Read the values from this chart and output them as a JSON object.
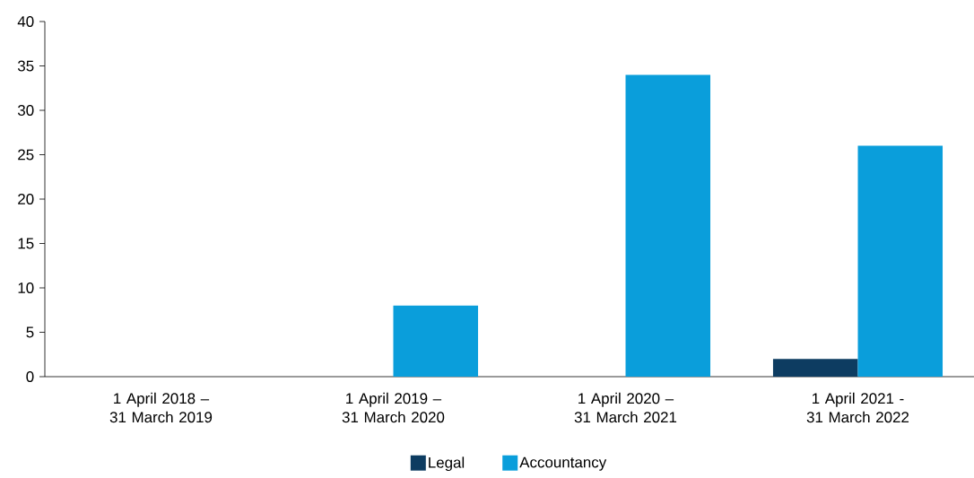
{
  "chart_data": {
    "type": "bar",
    "categories": [
      "1 April 2018 – 31 March 2019",
      "1 April 2019 – 31 March 2020",
      "1 April 2020 – 31 March 2021",
      "1 April 2021 - 31 March 2022"
    ],
    "series": [
      {
        "name": "Legal",
        "color": "#0d3c61",
        "values": [
          0,
          0,
          0,
          2
        ]
      },
      {
        "name": "Accountancy",
        "color": "#0a9edb",
        "values": [
          0,
          8,
          34,
          26
        ]
      }
    ],
    "ylim": [
      0,
      40
    ],
    "yticks": [
      0,
      5,
      10,
      15,
      20,
      25,
      30,
      35,
      40
    ],
    "legend": "bottom"
  }
}
